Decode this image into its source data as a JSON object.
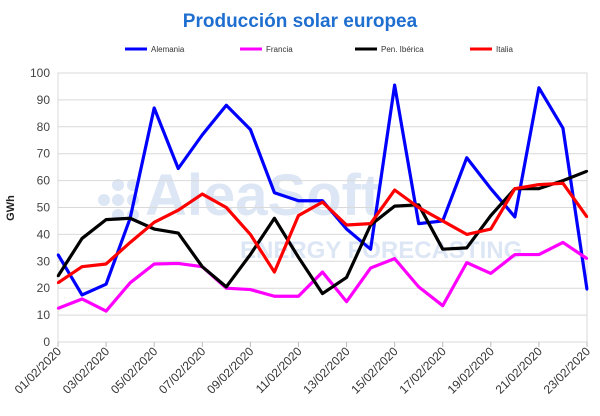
{
  "chart_data": {
    "type": "line",
    "title": "Producción solar europea",
    "xlabel": "",
    "ylabel": "GWh",
    "ylim": [
      0,
      100
    ],
    "yticks": [
      0,
      10,
      20,
      30,
      40,
      50,
      60,
      70,
      80,
      90,
      100
    ],
    "grid": true,
    "legend_position": "top",
    "watermark": "AleaSoft ENERGY FORECASTING",
    "x": [
      "01/02/2020",
      "02/02/2020",
      "03/02/2020",
      "04/02/2020",
      "05/02/2020",
      "06/02/2020",
      "07/02/2020",
      "08/02/2020",
      "09/02/2020",
      "10/02/2020",
      "11/02/2020",
      "12/02/2020",
      "13/02/2020",
      "14/02/2020",
      "15/02/2020",
      "16/02/2020",
      "17/02/2020",
      "18/02/2020",
      "19/02/2020",
      "20/02/2020",
      "21/02/2020",
      "22/02/2020",
      "23/02/2020"
    ],
    "xtick_labels": [
      "01/02/2020",
      "03/02/2020",
      "05/02/2020",
      "07/02/2020",
      "09/02/2020",
      "11/02/2020",
      "13/02/2020",
      "15/02/2020",
      "17/02/2020",
      "19/02/2020",
      "21/02/2020",
      "23/02/2020"
    ],
    "series": [
      {
        "name": "Alemania",
        "color": "#0000ff",
        "values": [
          32.5,
          17.5,
          21.5,
          46,
          87,
          64.5,
          77,
          88,
          79,
          55.5,
          52.5,
          52.5,
          42,
          34.5,
          95.5,
          44,
          45,
          68.5,
          57,
          46.5,
          94.5,
          79.5,
          19.5
        ]
      },
      {
        "name": "Francia",
        "color": "#ff00ff",
        "values": [
          12.5,
          16,
          11.5,
          22,
          29,
          29.2,
          28,
          20,
          19.5,
          17,
          17,
          26,
          15,
          27.5,
          31,
          20.5,
          13.5,
          29.5,
          25.5,
          32.5,
          32.5,
          37,
          31
        ]
      },
      {
        "name": "Pen. Ibérica",
        "color": "#000000",
        "values": [
          24.5,
          38.5,
          45.5,
          46,
          42,
          40.5,
          28,
          20.5,
          32.5,
          46,
          31.5,
          18,
          24,
          43.5,
          50.5,
          51,
          34.5,
          35,
          47,
          57,
          57,
          60,
          63.5
        ]
      },
      {
        "name": "Italia",
        "color": "#ff0000",
        "values": [
          22,
          28,
          29,
          37,
          44.5,
          49,
          55,
          50,
          40,
          26,
          47,
          52,
          43.5,
          44,
          56.5,
          50,
          45,
          40,
          42,
          57,
          58.5,
          59,
          46.5
        ]
      }
    ]
  }
}
